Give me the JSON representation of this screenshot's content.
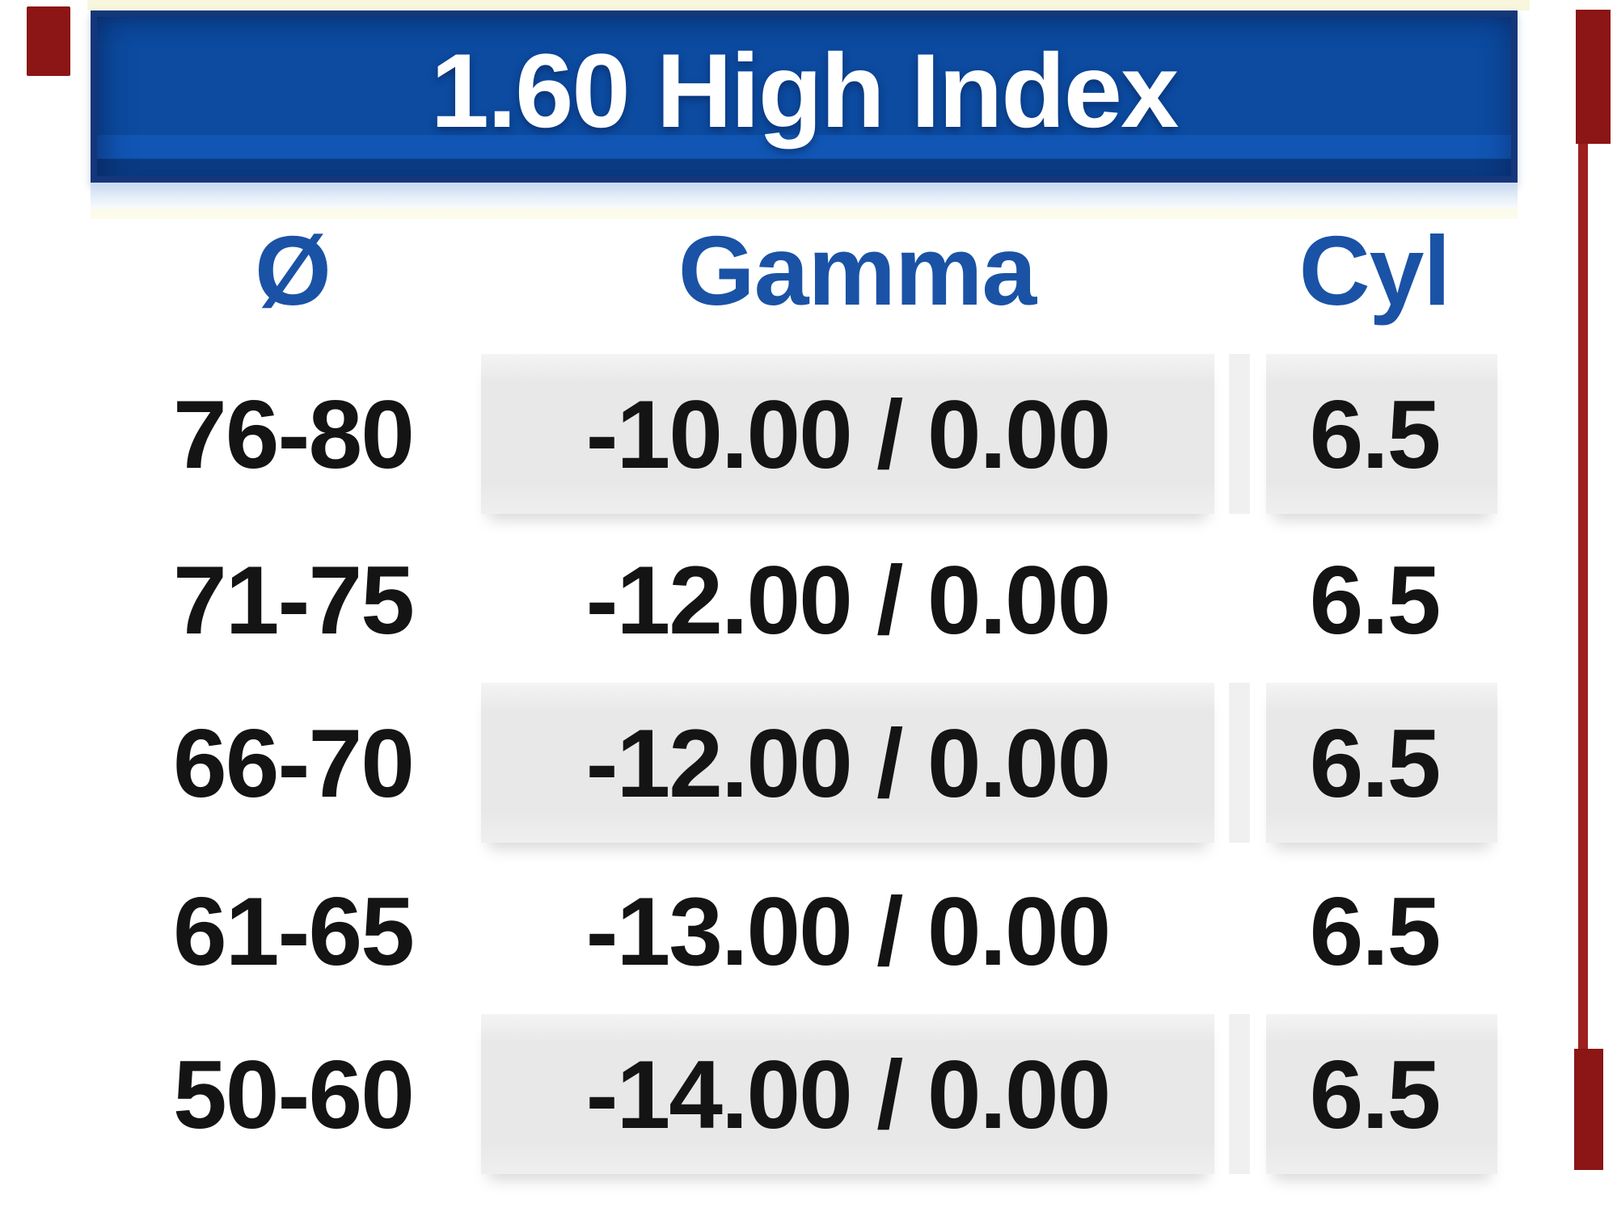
{
  "header": {
    "title": "1.60 High Index"
  },
  "table": {
    "columns": [
      "Ø",
      "Gamma",
      "Cyl"
    ],
    "rows": [
      {
        "diameter": "76-80",
        "gamma": "-10.00 / 0.00",
        "cyl": "6.5"
      },
      {
        "diameter": "71-75",
        "gamma": "-12.00 / 0.00",
        "cyl": "6.5"
      },
      {
        "diameter": "66-70",
        "gamma": "-12.00 / 0.00",
        "cyl": "6.5"
      },
      {
        "diameter": "61-65",
        "gamma": "-13.00 / 0.00",
        "cyl": "6.5"
      },
      {
        "diameter": "50-60",
        "gamma": "-14.00 / 0.00",
        "cyl": "6.5"
      }
    ]
  },
  "colors": {
    "banner_fill": "#0c4ba0",
    "banner_border": "#15377a",
    "banner_text": "#ffffff",
    "header_text": "#1a52a5",
    "row_text": "#141414",
    "row_stripe": "#e8e8e8",
    "edge_artifact_red": "#8c1515"
  },
  "chart_data": {
    "type": "table",
    "title": "1.60 High Index",
    "columns": [
      "Ø",
      "Gamma",
      "Cyl"
    ],
    "rows": [
      [
        "76-80",
        "-10.00 / 0.00",
        "6.5"
      ],
      [
        "71-75",
        "-12.00 / 0.00",
        "6.5"
      ],
      [
        "66-70",
        "-12.00 / 0.00",
        "6.5"
      ],
      [
        "61-65",
        "-13.00 / 0.00",
        "6.5"
      ],
      [
        "50-60",
        "-14.00 / 0.00",
        "6.5"
      ]
    ]
  }
}
